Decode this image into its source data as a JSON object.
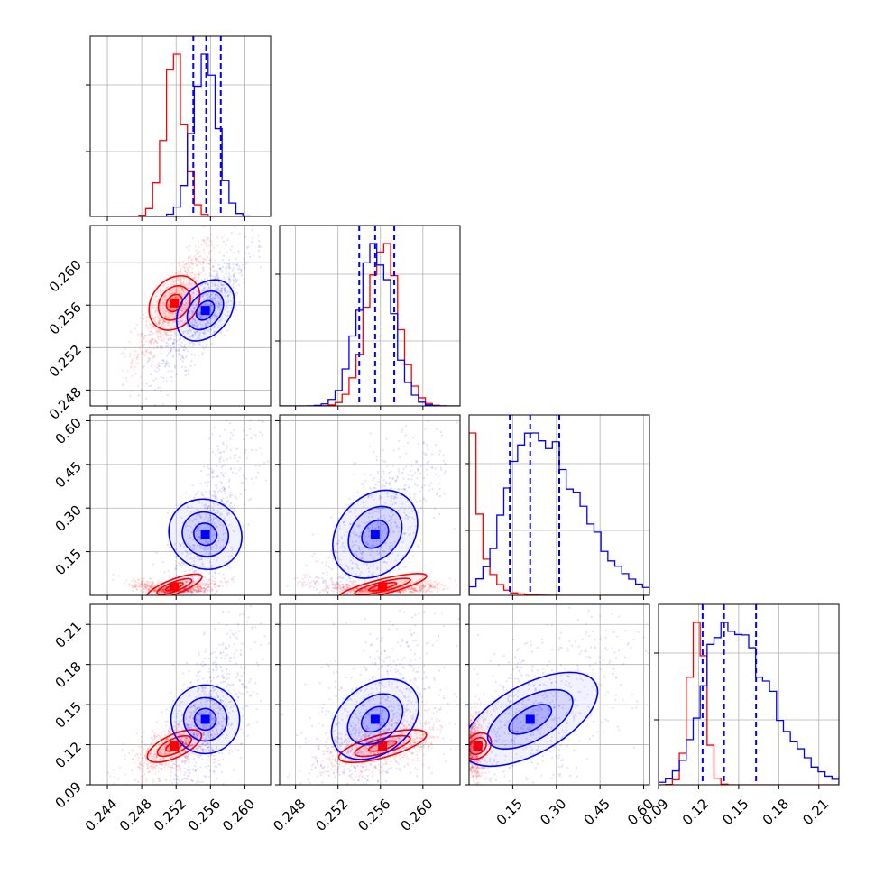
{
  "chart_data": {
    "type": "corner",
    "title": "",
    "parameters": 4,
    "series": [
      {
        "color": "#ff0000",
        "param1": {
          "mean": 0.2518,
          "sd": 0.0012
        },
        "param2": {
          "mean": 0.2562,
          "sd": 0.0015
        },
        "param3": {
          "mean": 0.03,
          "sd": 0.018
        },
        "param4": {
          "mean": 0.119,
          "sd": 0.006
        }
      },
      {
        "color": "#0000ff",
        "param1": {
          "mean": 0.2554,
          "sd": 0.0014
        },
        "param2": {
          "mean": 0.2555,
          "sd": 0.0016
        },
        "param3": {
          "mean": 0.21,
          "sd": 0.09
        },
        "param4": {
          "mean": 0.139,
          "sd": 0.018
        }
      }
    ],
    "quantile_lines": {
      "color": "#0000ff",
      "style": "dashed",
      "param1": [
        0.254,
        0.2555,
        0.2572
      ],
      "param2": [
        0.254,
        0.2555,
        0.2573
      ],
      "param3": [
        0.14,
        0.21,
        0.31
      ],
      "param4": [
        0.123,
        0.139,
        0.163
      ]
    },
    "axes": {
      "param1": {
        "range": [
          0.242,
          0.263
        ],
        "ticks": [
          "0.244",
          "0.248",
          "0.252",
          "0.256",
          "0.260"
        ]
      },
      "param2": {
        "range": [
          0.2465,
          0.2635
        ],
        "ticks": [
          "0.248",
          "0.252",
          "0.256",
          "0.260"
        ]
      },
      "param3": {
        "range": [
          0.0,
          0.62
        ],
        "ticks": [
          "0.15",
          "0.30",
          "0.45",
          "0.60"
        ]
      },
      "param4": {
        "range": [
          0.09,
          0.225
        ],
        "ticks": [
          "0.09",
          "0.12",
          "0.15",
          "0.18",
          "0.21"
        ]
      }
    },
    "grid": true
  }
}
